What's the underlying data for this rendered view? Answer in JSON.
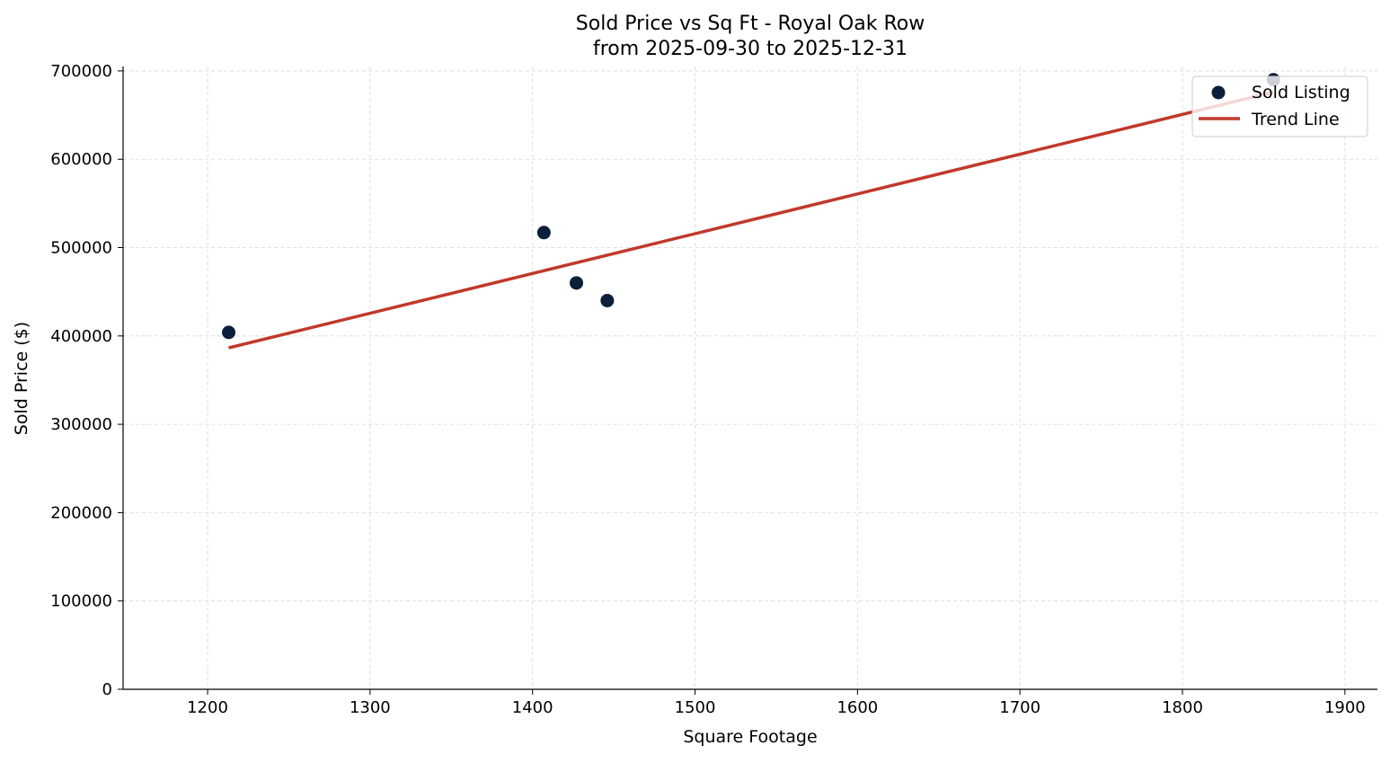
{
  "chart_data": {
    "type": "scatter",
    "title": "Sold Price vs Sq Ft - Royal Oak Row",
    "subtitle": "from 2025-09-30 to 2025-12-31",
    "xlabel": "Square Footage",
    "ylabel": "Sold Price ($)",
    "xlim": [
      1148,
      1920
    ],
    "ylim": [
      0,
      705000
    ],
    "xticks": [
      1200,
      1300,
      1400,
      1500,
      1600,
      1700,
      1800,
      1900
    ],
    "yticks": [
      0,
      100000,
      200000,
      300000,
      400000,
      500000,
      600000,
      700000
    ],
    "grid": true,
    "legend_placement": "top-right",
    "series": [
      {
        "name": "Sold Listing",
        "type": "scatter",
        "color": "#0b1f3a",
        "points": [
          {
            "x": 1213,
            "y": 404000
          },
          {
            "x": 1407,
            "y": 517000
          },
          {
            "x": 1427,
            "y": 460000
          },
          {
            "x": 1446,
            "y": 440000
          },
          {
            "x": 1856,
            "y": 690000
          }
        ]
      },
      {
        "name": "Trend Line",
        "type": "line",
        "color": "#c0392b",
        "points": [
          {
            "x": 1213,
            "y": 386500
          },
          {
            "x": 1856,
            "y": 676000
          }
        ]
      }
    ]
  }
}
